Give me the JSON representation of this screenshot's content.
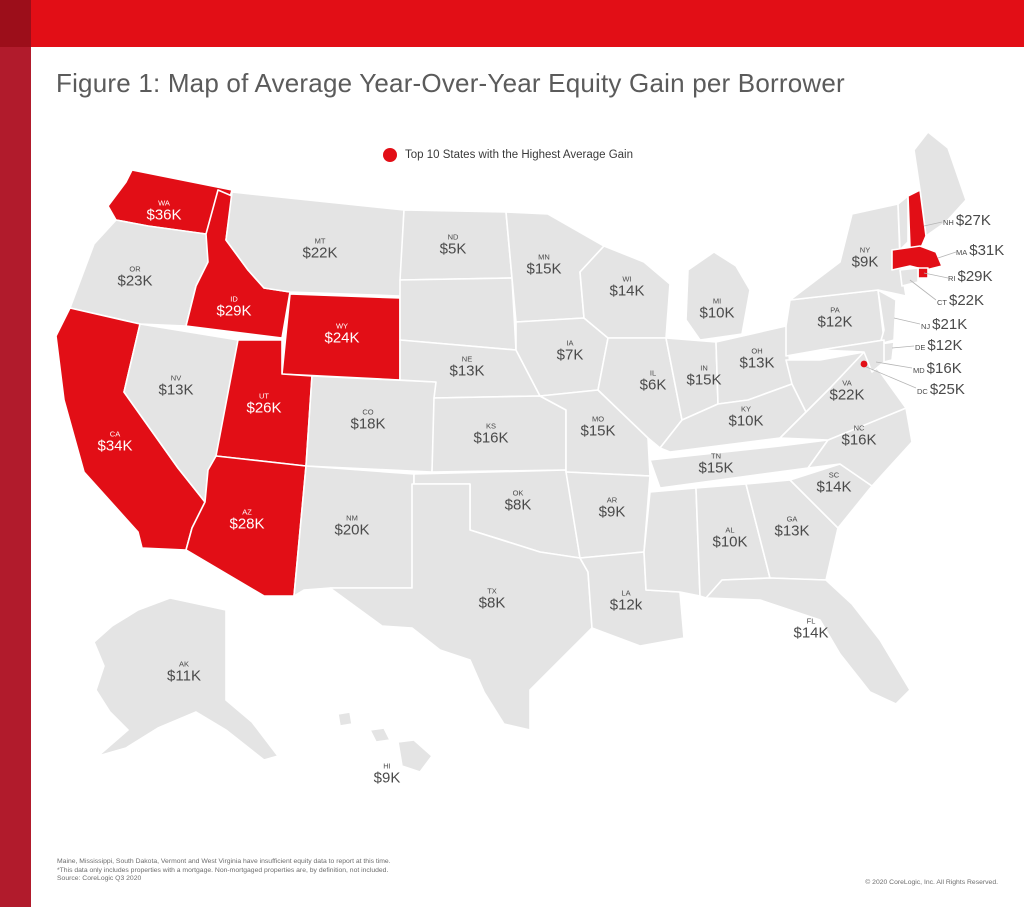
{
  "title": "Figure 1: Map of Average Year-Over-Year Equity Gain per Borrower",
  "legend": "Top 10 States with the Highest Average Gain",
  "colors": {
    "top": "#e20e16",
    "other": "#e4e4e4",
    "sidebar": "#b11b2c"
  },
  "states": [
    {
      "id": "wa",
      "abbr": "WA",
      "value": "$36K",
      "top": true
    },
    {
      "id": "or",
      "abbr": "OR",
      "value": "$23K",
      "top": false
    },
    {
      "id": "ca",
      "abbr": "CA",
      "value": "$34K",
      "top": true
    },
    {
      "id": "id",
      "abbr": "ID",
      "value": "$29K",
      "top": true
    },
    {
      "id": "nv",
      "abbr": "NV",
      "value": "$13K",
      "top": false
    },
    {
      "id": "mt",
      "abbr": "MT",
      "value": "$22K",
      "top": false
    },
    {
      "id": "wy",
      "abbr": "WY",
      "value": "$24K",
      "top": true
    },
    {
      "id": "ut",
      "abbr": "UT",
      "value": "$26K",
      "top": true
    },
    {
      "id": "az",
      "abbr": "AZ",
      "value": "$28K",
      "top": true
    },
    {
      "id": "co",
      "abbr": "CO",
      "value": "$18K",
      "top": false
    },
    {
      "id": "nm",
      "abbr": "NM",
      "value": "$20K",
      "top": false
    },
    {
      "id": "nd",
      "abbr": "ND",
      "value": "$5K",
      "top": false
    },
    {
      "id": "ne",
      "abbr": "NE",
      "value": "$13K",
      "top": false
    },
    {
      "id": "ks",
      "abbr": "KS",
      "value": "$16K",
      "top": false
    },
    {
      "id": "ok",
      "abbr": "OK",
      "value": "$8K",
      "top": false
    },
    {
      "id": "tx",
      "abbr": "TX",
      "value": "$8K",
      "top": false
    },
    {
      "id": "mn",
      "abbr": "MN",
      "value": "$15K",
      "top": false
    },
    {
      "id": "ia",
      "abbr": "IA",
      "value": "$7K",
      "top": false
    },
    {
      "id": "mo",
      "abbr": "MO",
      "value": "$15K",
      "top": false
    },
    {
      "id": "ar",
      "abbr": "AR",
      "value": "$9K",
      "top": false
    },
    {
      "id": "la",
      "abbr": "LA",
      "value": "$12k",
      "top": false
    },
    {
      "id": "wi",
      "abbr": "WI",
      "value": "$14K",
      "top": false
    },
    {
      "id": "il",
      "abbr": "IL",
      "value": "$6K",
      "top": false
    },
    {
      "id": "mi",
      "abbr": "MI",
      "value": "$10K",
      "top": false
    },
    {
      "id": "in",
      "abbr": "IN",
      "value": "$15K",
      "top": false
    },
    {
      "id": "oh",
      "abbr": "OH",
      "value": "$13K",
      "top": false
    },
    {
      "id": "ky",
      "abbr": "KY",
      "value": "$10K",
      "top": false
    },
    {
      "id": "tn",
      "abbr": "TN",
      "value": "$15K",
      "top": false
    },
    {
      "id": "al",
      "abbr": "AL",
      "value": "$10K",
      "top": false
    },
    {
      "id": "ga",
      "abbr": "GA",
      "value": "$13K",
      "top": false
    },
    {
      "id": "fl",
      "abbr": "FL",
      "value": "$14K",
      "top": false
    },
    {
      "id": "sc",
      "abbr": "SC",
      "value": "$14K",
      "top": false
    },
    {
      "id": "nc",
      "abbr": "NC",
      "value": "$16K",
      "top": false
    },
    {
      "id": "va",
      "abbr": "VA",
      "value": "$22K",
      "top": false
    },
    {
      "id": "pa",
      "abbr": "PA",
      "value": "$12K",
      "top": false
    },
    {
      "id": "ny",
      "abbr": "NY",
      "value": "$9K",
      "top": false
    },
    {
      "id": "nh",
      "abbr": "NH",
      "value": "$27K",
      "top": true
    },
    {
      "id": "ma",
      "abbr": "MA",
      "value": "$31K",
      "top": true
    },
    {
      "id": "ri",
      "abbr": "RI",
      "value": "$29K",
      "top": true
    },
    {
      "id": "ct",
      "abbr": "CT",
      "value": "$22K",
      "top": false
    },
    {
      "id": "nj",
      "abbr": "NJ",
      "value": "$21K",
      "top": false
    },
    {
      "id": "de",
      "abbr": "DE",
      "value": "$12K",
      "top": false
    },
    {
      "id": "md",
      "abbr": "MD",
      "value": "$16K",
      "top": false
    },
    {
      "id": "dc",
      "abbr": "DC",
      "value": "$25K",
      "top": true
    },
    {
      "id": "ak",
      "abbr": "AK",
      "value": "$11K",
      "top": false
    },
    {
      "id": "hi",
      "abbr": "HI",
      "value": "$9K",
      "top": false
    }
  ],
  "footnote": [
    "Maine, Mississippi, South Dakota, Vermont and West Virginia  have insufficient equity data to report at this time.",
    "*This data only includes properties with a mortgage. Non-mortgaged properties are, by definition, not included.",
    "Source: CoreLogic Q3 2020"
  ],
  "copyright": "© 2020 CoreLogic, Inc. All Rights Reserved."
}
